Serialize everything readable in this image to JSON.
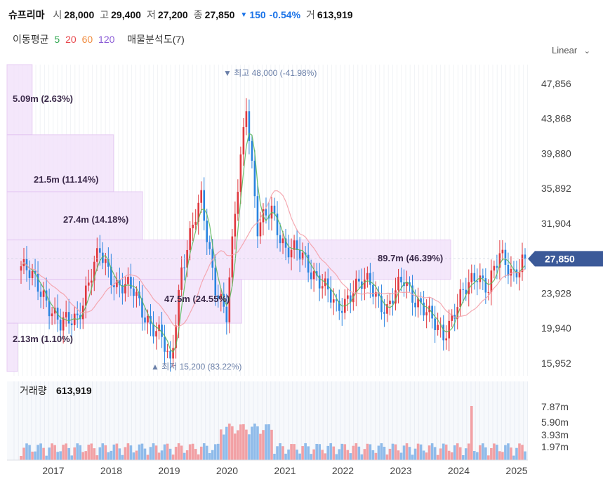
{
  "header": {
    "name": "슈프리마",
    "open_label": "시",
    "open": "28,000",
    "high_label": "고",
    "high": "29,400",
    "low_label": "저",
    "low": "27,200",
    "close_label": "종",
    "close": "27,850",
    "change": "150",
    "change_pct": "-0.54%",
    "volume_label": "거",
    "volume": "613,919"
  },
  "ma": {
    "label": "이동평균",
    "periods": [
      "5",
      "20",
      "60",
      "120"
    ],
    "colors": [
      "#32a852",
      "#e8474c",
      "#f08a3c",
      "#8b5cd6"
    ],
    "analysis_label": "매물분석도(7)"
  },
  "scale_label": "Linear",
  "colors": {
    "up": "#e0383e",
    "down": "#2a84e0",
    "profile": "#f3e3fb",
    "price_tag": "#3b5998"
  },
  "chart_data": {
    "type": "candlestick",
    "y_ticks": [
      "47,856",
      "43,868",
      "39,880",
      "35,892",
      "31,904",
      "27,850",
      "23,928",
      "19,940",
      "15,952"
    ],
    "ylim": [
      14500,
      50000
    ],
    "x_ticks": [
      "2017",
      "2018",
      "2019",
      "2020",
      "2021",
      "2022",
      "2023",
      "2024",
      "2025"
    ],
    "current_price": 27850,
    "high_marker": {
      "label": "최고",
      "value": "48,000 (-41.98%)"
    },
    "low_marker": {
      "label": "최저",
      "value": "15,200 (83.22%)"
    },
    "volume_profile": [
      {
        "lo": 42000,
        "hi": 50000,
        "label": "5.09m (2.63%)",
        "pct": 2.63
      },
      {
        "lo": 35500,
        "hi": 42000,
        "label": "21.5m (11.14%)",
        "pct": 11.14
      },
      {
        "lo": 30000,
        "hi": 35500,
        "label": "27.4m (14.18%)",
        "pct": 14.18
      },
      {
        "lo": 25500,
        "hi": 30000,
        "label": "89.7m (46.39%)",
        "pct": 46.39
      },
      {
        "lo": 20500,
        "hi": 25500,
        "label": "47.5m (24.55%)",
        "pct": 24.55
      },
      {
        "lo": 15000,
        "hi": 20500,
        "label": "2.13m (1.10%)",
        "pct": 1.1
      }
    ],
    "volume_label": "거래량",
    "volume_value": "613,919",
    "volume_ticks": [
      "7.87m",
      "5.90m",
      "3.93m",
      "1.97m"
    ]
  }
}
